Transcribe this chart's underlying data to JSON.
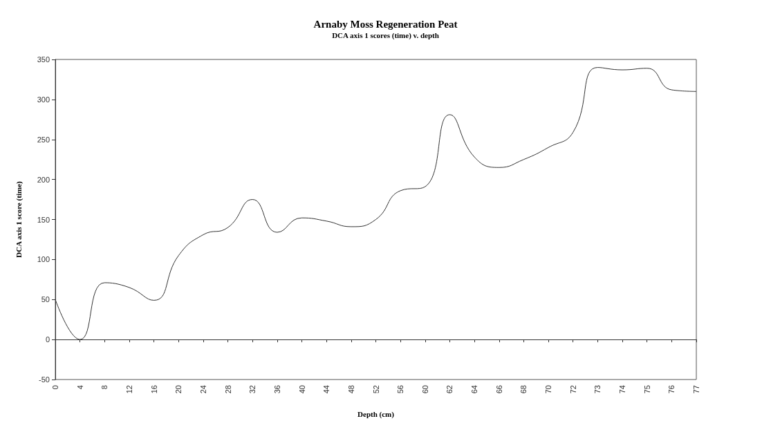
{
  "chart_data": {
    "type": "line",
    "title": "Arnaby Moss Regeneration Peat",
    "subtitle": "DCA axis 1 scores (time) v. depth",
    "xlabel": "Depth (cm)",
    "ylabel": "DCA axis 1 score (time)",
    "categories": [
      "0",
      "4",
      "8",
      "12",
      "16",
      "20",
      "24",
      "28",
      "32",
      "36",
      "40",
      "44",
      "48",
      "52",
      "56",
      "60",
      "62",
      "64",
      "66",
      "68",
      "70",
      "72",
      "73",
      "74",
      "75",
      "76",
      "77"
    ],
    "series": [
      {
        "color": "#333333",
        "values": [
          50,
          0,
          71,
          65,
          49,
          105,
          131,
          140,
          175,
          134,
          152,
          148,
          141,
          150,
          186,
          191,
          281,
          228,
          215,
          225,
          240,
          259,
          340,
          337,
          339,
          312,
          310
        ]
      }
    ],
    "ylim": [
      -50,
      350
    ],
    "yticks": [
      -50,
      0,
      50,
      100,
      150,
      200,
      250,
      300,
      350
    ],
    "marker": "none",
    "line_style": "solid"
  }
}
